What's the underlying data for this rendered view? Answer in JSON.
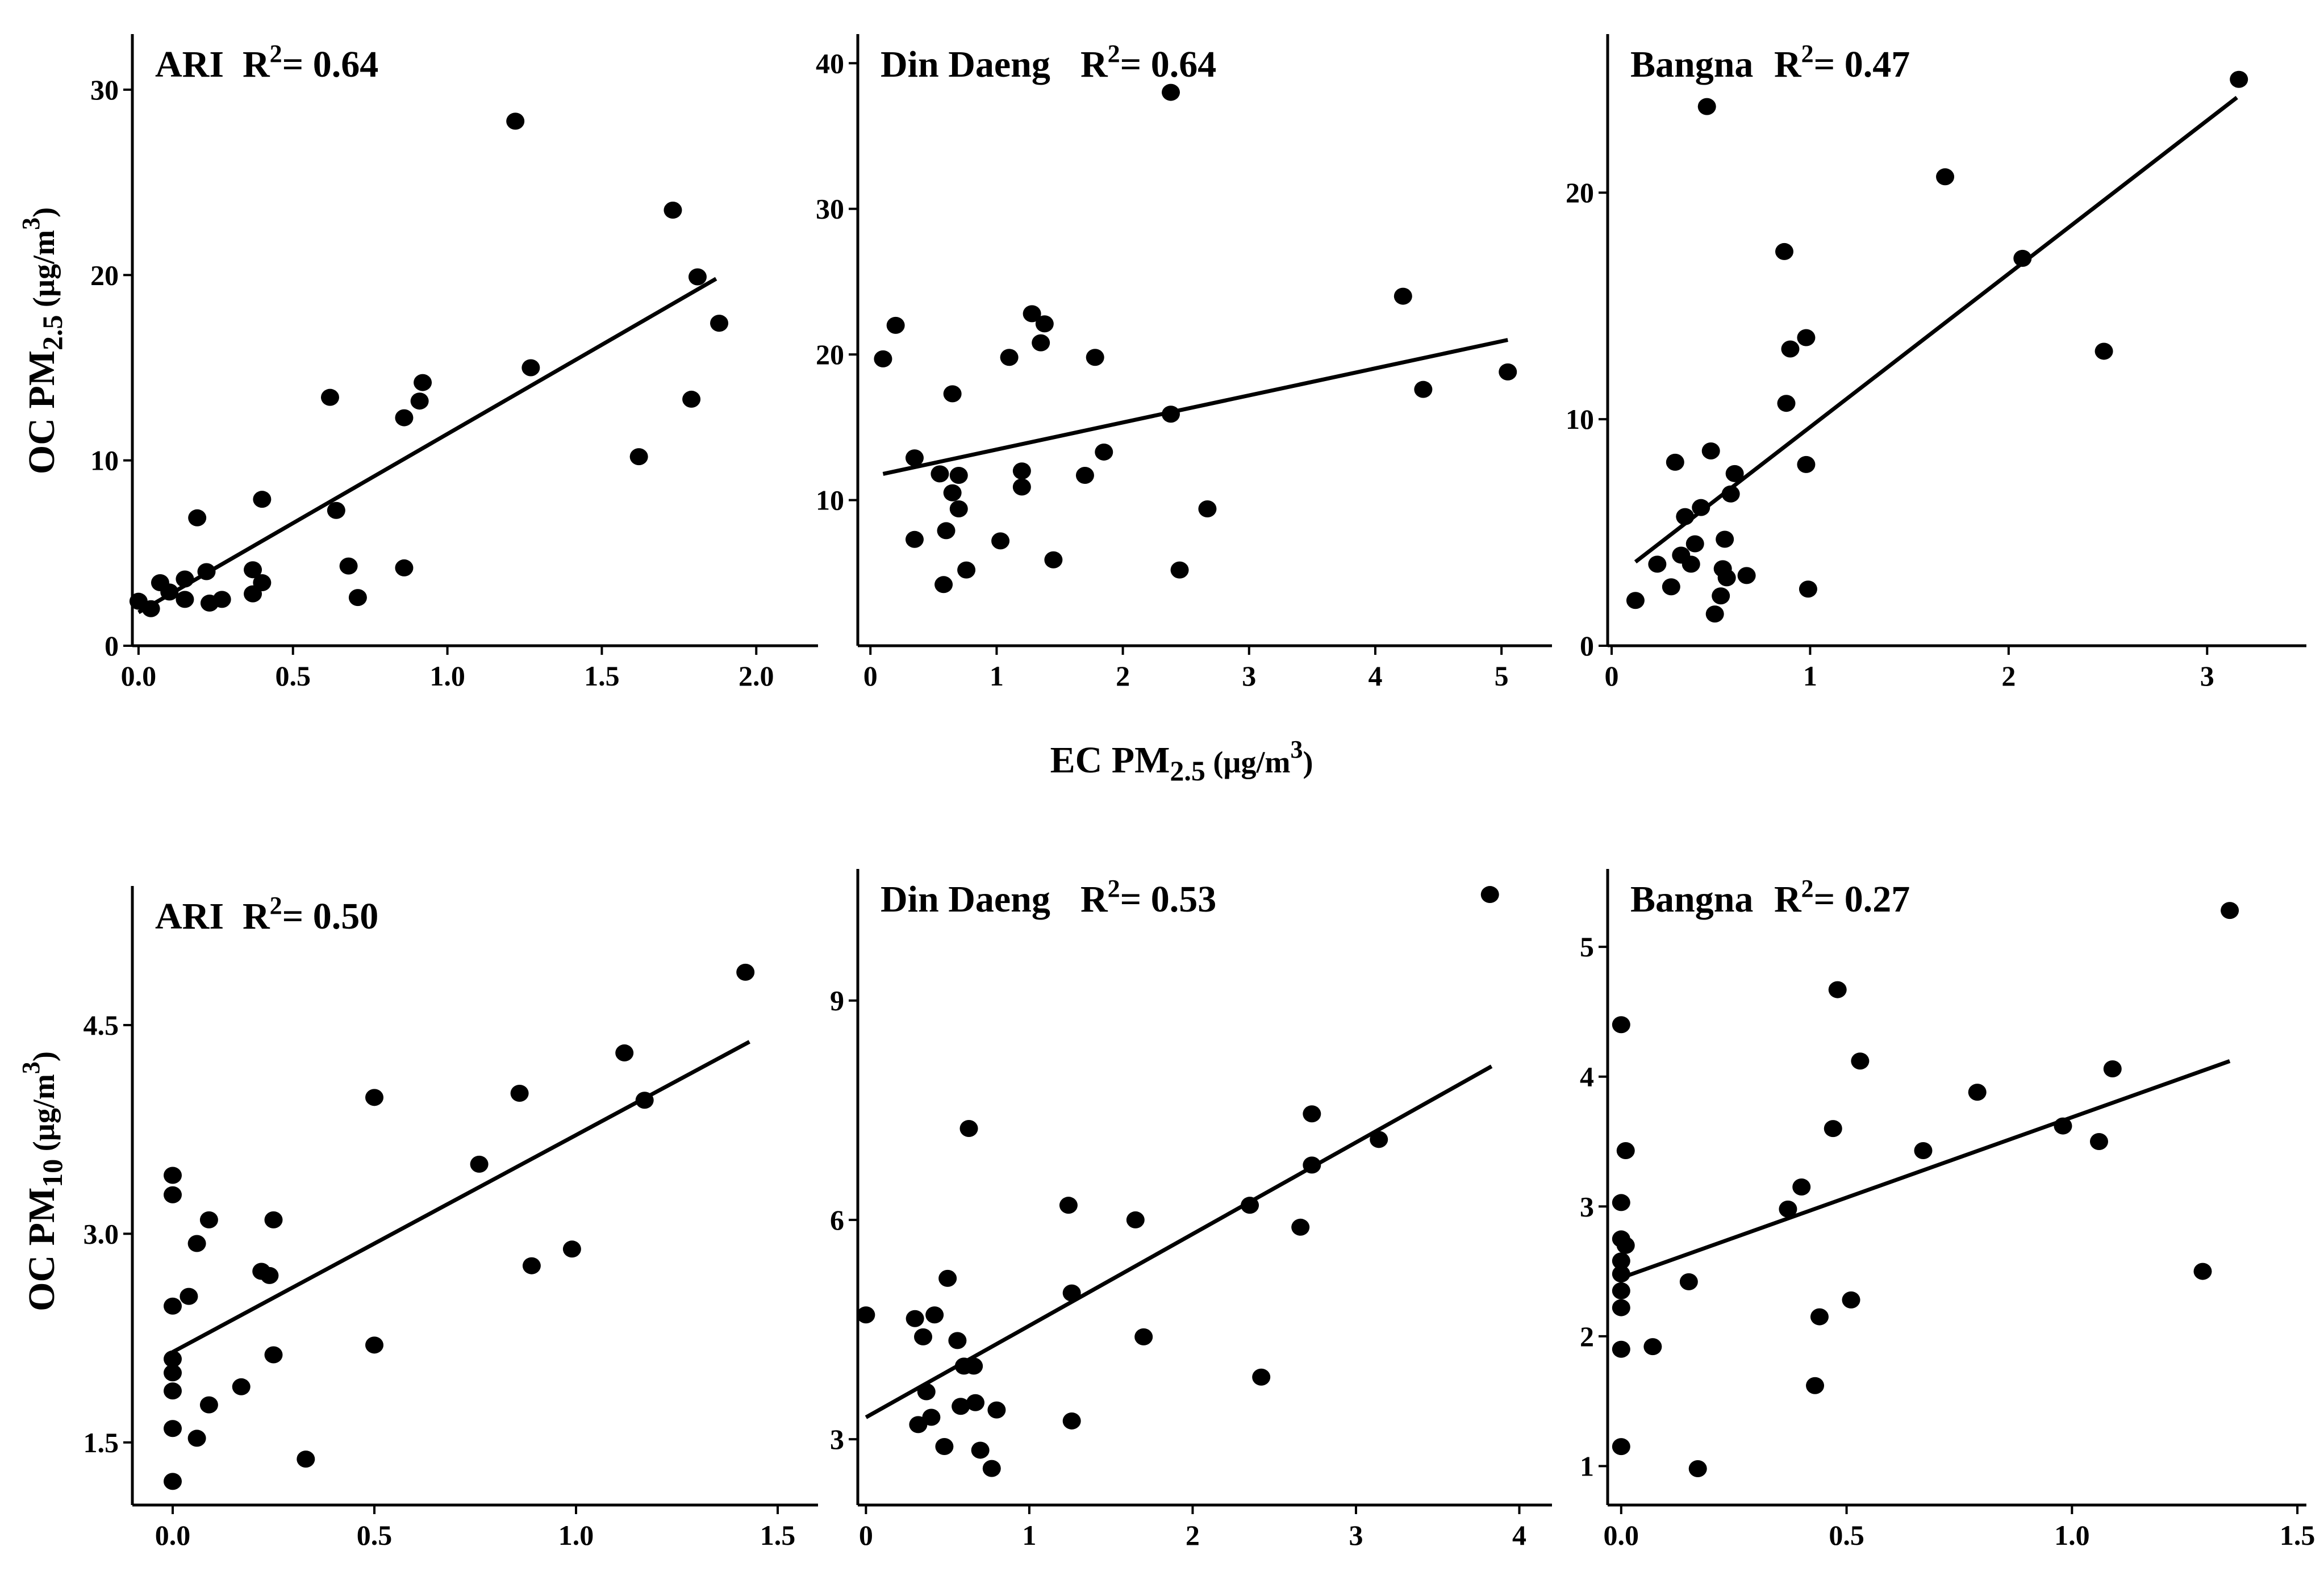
{
  "figure": {
    "ylabel_pm25": {
      "main": "OC PM",
      "sub": "2.5",
      "unit_open": " (µg/m",
      "unit_sup": "3",
      "unit_close": ")"
    },
    "xlabel_pm25": {
      "main": "EC PM",
      "sub": "2.5",
      "unit_open": " (µg/m",
      "unit_sup": "3",
      "unit_close": ")"
    },
    "ylabel_pm10": {
      "main": "OC PM",
      "sub": "10",
      "unit_open": " (µg/m",
      "unit_sup": "3",
      "unit_close": ")"
    }
  },
  "chart_data": [
    {
      "type": "scatter",
      "title": "ARI",
      "r2_prefix": "R",
      "r2_sup": "2",
      "r2_value": "= 0.64",
      "xlim": [
        -0.02,
        2.2
      ],
      "ylim": [
        0,
        33
      ],
      "xticks": [
        0.0,
        0.5,
        1.0,
        1.5,
        2.0
      ],
      "xtick_labels": [
        "0.0",
        "0.5",
        "1.0",
        "1.5",
        "2.0"
      ],
      "yticks": [
        0,
        10,
        20,
        30
      ],
      "ytick_labels": [
        "0",
        "10",
        "20",
        "30"
      ],
      "fit": [
        [
          0.0,
          1.8
        ],
        [
          1.87,
          19.8
        ]
      ],
      "points": [
        [
          0.0,
          2.4
        ],
        [
          0.04,
          2.0
        ],
        [
          0.07,
          3.4
        ],
        [
          0.1,
          2.9
        ],
        [
          0.15,
          2.5
        ],
        [
          0.15,
          3.6
        ],
        [
          0.19,
          6.9
        ],
        [
          0.22,
          4.0
        ],
        [
          0.23,
          2.3
        ],
        [
          0.27,
          2.5
        ],
        [
          0.37,
          4.1
        ],
        [
          0.37,
          2.8
        ],
        [
          0.4,
          7.9
        ],
        [
          0.4,
          3.4
        ],
        [
          0.62,
          13.4
        ],
        [
          0.64,
          7.3
        ],
        [
          0.68,
          4.3
        ],
        [
          0.71,
          2.6
        ],
        [
          0.86,
          12.3
        ],
        [
          0.86,
          4.2
        ],
        [
          0.91,
          13.2
        ],
        [
          0.92,
          14.2
        ],
        [
          1.22,
          28.3
        ],
        [
          1.27,
          15.0
        ],
        [
          1.62,
          10.2
        ],
        [
          1.73,
          23.5
        ],
        [
          1.79,
          13.3
        ],
        [
          1.81,
          19.9
        ],
        [
          1.88,
          17.4
        ]
      ]
    },
    {
      "type": "scatter",
      "title": "Din Daeng",
      "r2_prefix": "R",
      "r2_sup": "2",
      "r2_value": "= 0.64",
      "xlim": [
        -0.1,
        5.4
      ],
      "ylim": [
        0,
        42
      ],
      "xticks": [
        0,
        1,
        2,
        3,
        4,
        5
      ],
      "xtick_labels": [
        "0",
        "1",
        "2",
        "3",
        "4",
        "5"
      ],
      "yticks": [
        10,
        20,
        30,
        40
      ],
      "ytick_labels": [
        "10",
        "20",
        "30",
        "40"
      ],
      "fit": [
        [
          0.1,
          11.8
        ],
        [
          5.05,
          21.0
        ]
      ],
      "points": [
        [
          0.1,
          19.7
        ],
        [
          0.2,
          22.0
        ],
        [
          0.35,
          7.3
        ],
        [
          0.35,
          12.9
        ],
        [
          0.55,
          11.8
        ],
        [
          0.58,
          4.2
        ],
        [
          0.6,
          7.9
        ],
        [
          0.65,
          17.3
        ],
        [
          0.65,
          10.5
        ],
        [
          0.7,
          11.7
        ],
        [
          0.7,
          9.4
        ],
        [
          0.76,
          5.2
        ],
        [
          1.03,
          7.2
        ],
        [
          1.1,
          19.8
        ],
        [
          1.2,
          12.0
        ],
        [
          1.2,
          10.9
        ],
        [
          1.28,
          22.8
        ],
        [
          1.35,
          20.8
        ],
        [
          1.38,
          22.1
        ],
        [
          1.45,
          5.9
        ],
        [
          1.7,
          11.7
        ],
        [
          1.78,
          19.8
        ],
        [
          1.85,
          13.3
        ],
        [
          2.38,
          38.0
        ],
        [
          2.38,
          15.9
        ],
        [
          2.45,
          5.2
        ],
        [
          2.67,
          9.4
        ],
        [
          4.22,
          24.0
        ],
        [
          4.38,
          17.6
        ],
        [
          5.05,
          18.8
        ]
      ]
    },
    {
      "type": "scatter",
      "title": "Bangna",
      "r2_prefix": "R",
      "r2_sup": "2",
      "r2_value": "= 0.47",
      "xlim": [
        -0.02,
        3.5
      ],
      "ylim": [
        0,
        27
      ],
      "xticks": [
        0,
        1,
        2,
        3
      ],
      "xtick_labels": [
        "0",
        "1",
        "2",
        "3"
      ],
      "yticks": [
        0,
        10,
        20
      ],
      "ytick_labels": [
        "0",
        "10",
        "20"
      ],
      "fit": [
        [
          0.12,
          3.7
        ],
        [
          3.15,
          24.2
        ]
      ],
      "points": [
        [
          0.12,
          2.0
        ],
        [
          0.23,
          3.6
        ],
        [
          0.3,
          2.6
        ],
        [
          0.32,
          8.1
        ],
        [
          0.35,
          4.0
        ],
        [
          0.37,
          5.7
        ],
        [
          0.4,
          3.6
        ],
        [
          0.42,
          4.5
        ],
        [
          0.45,
          6.1
        ],
        [
          0.48,
          23.8
        ],
        [
          0.5,
          8.6
        ],
        [
          0.52,
          1.4
        ],
        [
          0.55,
          2.2
        ],
        [
          0.56,
          3.4
        ],
        [
          0.57,
          4.7
        ],
        [
          0.58,
          3.0
        ],
        [
          0.6,
          6.7
        ],
        [
          0.62,
          7.6
        ],
        [
          0.68,
          3.1
        ],
        [
          0.87,
          17.4
        ],
        [
          0.88,
          10.7
        ],
        [
          0.9,
          13.1
        ],
        [
          0.98,
          13.6
        ],
        [
          0.98,
          8.0
        ],
        [
          0.99,
          2.5
        ],
        [
          1.68,
          20.7
        ],
        [
          2.07,
          17.1
        ],
        [
          2.48,
          13.0
        ],
        [
          3.16,
          25.0
        ]
      ]
    },
    {
      "type": "scatter",
      "title": "ARI",
      "r2_prefix": "R",
      "r2_sup": "2",
      "r2_value": "= 0.50",
      "xlim": [
        -0.1,
        1.6
      ],
      "ylim": [
        1.05,
        5.5
      ],
      "xticks": [
        0.0,
        0.5,
        1.0,
        1.5
      ],
      "xtick_labels": [
        "0.0",
        "0.5",
        "1.0",
        "1.5"
      ],
      "yticks": [
        1.5,
        3.0,
        4.5
      ],
      "ytick_labels": [
        "1.5",
        "3.0",
        "4.5"
      ],
      "fit": [
        [
          0.0,
          2.15
        ],
        [
          1.43,
          4.38
        ]
      ],
      "points": [
        [
          0.0,
          3.42
        ],
        [
          0.0,
          3.28
        ],
        [
          0.0,
          2.48
        ],
        [
          0.0,
          2.1
        ],
        [
          0.0,
          2.0
        ],
        [
          0.0,
          1.87
        ],
        [
          0.0,
          1.6
        ],
        [
          0.0,
          1.22
        ],
        [
          0.04,
          2.55
        ],
        [
          0.06,
          2.93
        ],
        [
          0.06,
          1.53
        ],
        [
          0.09,
          3.1
        ],
        [
          0.09,
          1.77
        ],
        [
          0.17,
          1.9
        ],
        [
          0.22,
          2.73
        ],
        [
          0.24,
          2.7
        ],
        [
          0.25,
          3.1
        ],
        [
          0.25,
          2.13
        ],
        [
          0.33,
          1.38
        ],
        [
          0.5,
          3.98
        ],
        [
          0.5,
          2.2
        ],
        [
          0.76,
          3.5
        ],
        [
          0.86,
          4.01
        ],
        [
          0.89,
          2.77
        ],
        [
          0.99,
          2.89
        ],
        [
          1.12,
          4.3
        ],
        [
          1.17,
          3.96
        ],
        [
          1.42,
          4.88
        ]
      ]
    },
    {
      "type": "scatter",
      "title": "Din Daeng",
      "r2_prefix": "R",
      "r2_sup": "2",
      "r2_value": "= 0.53",
      "xlim": [
        -0.05,
        4.2
      ],
      "ylim": [
        2.1,
        10.8
      ],
      "xticks": [
        0,
        1,
        2,
        3,
        4
      ],
      "xtick_labels": [
        "0",
        "1",
        "2",
        "3",
        "4"
      ],
      "yticks": [
        3,
        6,
        9
      ],
      "ytick_labels": [
        "3",
        "6",
        "9"
      ],
      "fit": [
        [
          0.0,
          3.3
        ],
        [
          3.83,
          8.1
        ]
      ],
      "points": [
        [
          0.0,
          4.7
        ],
        [
          0.3,
          4.65
        ],
        [
          0.32,
          3.2
        ],
        [
          0.35,
          4.4
        ],
        [
          0.37,
          3.65
        ],
        [
          0.4,
          3.3
        ],
        [
          0.42,
          4.7
        ],
        [
          0.48,
          2.9
        ],
        [
          0.5,
          5.2
        ],
        [
          0.56,
          4.35
        ],
        [
          0.58,
          3.45
        ],
        [
          0.6,
          4.0
        ],
        [
          0.63,
          7.25
        ],
        [
          0.66,
          4.0
        ],
        [
          0.67,
          3.5
        ],
        [
          0.7,
          2.85
        ],
        [
          0.77,
          2.6
        ],
        [
          0.8,
          3.4
        ],
        [
          1.24,
          6.2
        ],
        [
          1.26,
          5.0
        ],
        [
          1.26,
          3.25
        ],
        [
          1.65,
          6.0
        ],
        [
          1.7,
          4.4
        ],
        [
          2.35,
          6.2
        ],
        [
          2.42,
          3.85
        ],
        [
          2.66,
          5.9
        ],
        [
          2.73,
          7.45
        ],
        [
          2.73,
          6.75
        ],
        [
          3.14,
          7.1
        ],
        [
          3.82,
          10.45
        ]
      ]
    },
    {
      "type": "scatter",
      "title": "Bangna",
      "r2_prefix": "R",
      "r2_sup": "2",
      "r2_value": "= 0.27",
      "xlim": [
        -0.03,
        1.52
      ],
      "ylim": [
        0.7,
        5.6
      ],
      "xticks": [
        0.0,
        0.5,
        1.0,
        1.5
      ],
      "xtick_labels": [
        "0.0",
        "0.5",
        "1.0",
        "1.5"
      ],
      "yticks": [
        1,
        2,
        3,
        4,
        5
      ],
      "ytick_labels": [
        "1",
        "2",
        "3",
        "4",
        "5"
      ],
      "fit": [
        [
          0.0,
          2.45
        ],
        [
          1.35,
          4.12
        ]
      ],
      "points": [
        [
          0.0,
          4.4
        ],
        [
          0.0,
          3.03
        ],
        [
          0.0,
          2.75
        ],
        [
          0.0,
          2.58
        ],
        [
          0.0,
          2.48
        ],
        [
          0.0,
          2.35
        ],
        [
          0.0,
          2.22
        ],
        [
          0.0,
          1.9
        ],
        [
          0.0,
          1.15
        ],
        [
          0.01,
          3.43
        ],
        [
          0.01,
          2.7
        ],
        [
          0.07,
          1.92
        ],
        [
          0.15,
          2.42
        ],
        [
          0.17,
          0.98
        ],
        [
          0.37,
          2.98
        ],
        [
          0.4,
          3.15
        ],
        [
          0.43,
          1.62
        ],
        [
          0.44,
          2.15
        ],
        [
          0.47,
          3.6
        ],
        [
          0.48,
          4.67
        ],
        [
          0.51,
          2.28
        ],
        [
          0.53,
          4.12
        ],
        [
          0.67,
          3.43
        ],
        [
          0.79,
          3.88
        ],
        [
          0.98,
          3.62
        ],
        [
          1.06,
          3.5
        ],
        [
          1.09,
          4.06
        ],
        [
          1.29,
          2.5
        ],
        [
          1.35,
          5.28
        ]
      ]
    }
  ]
}
